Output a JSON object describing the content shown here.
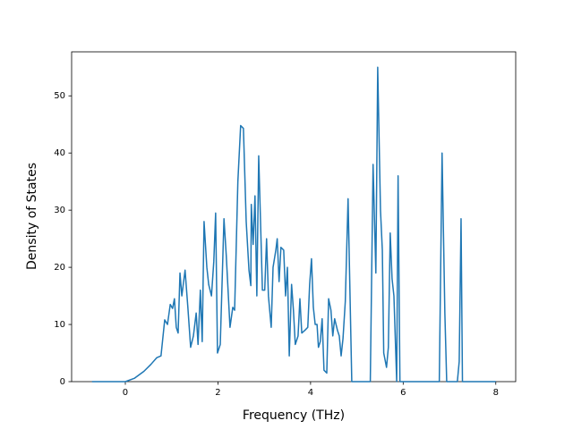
{
  "chart_data": {
    "type": "line",
    "x_label": "Frequency (THz)",
    "y_label": "Density of States",
    "x": [
      -0.72,
      0,
      0.2,
      0.4,
      0.55,
      0.68,
      0.77,
      0.85,
      0.91,
      0.97,
      1.02,
      1.06,
      1.1,
      1.14,
      1.18,
      1.22,
      1.29,
      1.35,
      1.41,
      1.47,
      1.53,
      1.57,
      1.62,
      1.66,
      1.7,
      1.76,
      1.8,
      1.86,
      1.91,
      1.95,
      1.99,
      2.05,
      2.13,
      2.18,
      2.26,
      2.32,
      2.36,
      2.43,
      2.49,
      2.55,
      2.61,
      2.67,
      2.71,
      2.72,
      2.76,
      2.8,
      2.84,
      2.88,
      2.94,
      2.96,
      3.01,
      3.05,
      3.09,
      3.15,
      3.19,
      3.25,
      3.28,
      3.32,
      3.36,
      3.42,
      3.46,
      3.5,
      3.54,
      3.59,
      3.63,
      3.67,
      3.73,
      3.77,
      3.81,
      3.88,
      3.94,
      3.98,
      4.02,
      4.06,
      4.1,
      4.14,
      4.17,
      4.21,
      4.25,
      4.29,
      4.35,
      4.39,
      4.44,
      4.48,
      4.52,
      4.58,
      4.62,
      4.66,
      4.7,
      4.75,
      4.81,
      4.85,
      4.89,
      5.29,
      5.35,
      5.41,
      5.45,
      5.51,
      5.55,
      5.58,
      5.64,
      5.68,
      5.72,
      5.76,
      5.8,
      5.86,
      5.89,
      5.93,
      6.78,
      6.84,
      6.9,
      6.94,
      7.17,
      7.21,
      7.25,
      7.28,
      8.0
    ],
    "y": [
      0,
      0,
      0.6,
      1.8,
      3,
      4.2,
      4.5,
      10.8,
      10,
      13.5,
      12.8,
      14.5,
      9.5,
      8.5,
      19,
      15,
      19.5,
      13,
      6,
      8,
      12,
      6.5,
      16,
      7,
      28,
      20,
      17,
      15,
      21,
      29.5,
      5,
      6.5,
      28.5,
      22,
      9.5,
      13,
      12.5,
      35,
      44.8,
      44.3,
      28,
      19.5,
      16.8,
      31,
      24,
      32.5,
      15,
      39.5,
      22,
      16,
      16,
      25,
      15,
      9.5,
      20,
      23,
      25,
      17.5,
      23.5,
      23,
      15,
      20,
      4.5,
      17,
      12.5,
      6.5,
      8,
      14.5,
      8.5,
      9,
      9.5,
      17,
      21.5,
      13,
      10,
      10,
      6,
      7,
      11,
      2,
      1.5,
      14.5,
      12.5,
      8,
      11,
      9,
      8,
      4.5,
      7.5,
      14,
      32,
      16,
      0,
      0,
      38,
      19,
      55,
      30,
      23,
      5,
      2.5,
      6,
      26,
      18,
      15,
      0,
      36,
      0,
      0,
      40,
      12,
      0,
      0,
      3.5,
      28.5,
      0,
      0
    ],
    "color": "#1f77b4",
    "xlim": [
      -1.16,
      8.43
    ],
    "ylim": [
      0,
      57.7
    ],
    "xticks": [
      0,
      2,
      4,
      6,
      8
    ],
    "yticks": [
      0,
      10,
      20,
      30,
      40,
      50
    ]
  }
}
